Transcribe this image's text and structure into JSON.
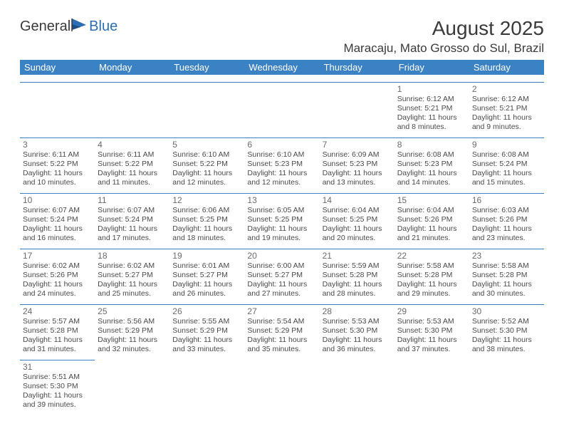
{
  "brand": {
    "part1": "General",
    "part2": "Blue"
  },
  "title": "August 2025",
  "location": "Maracaju, Mato Grosso do Sul, Brazil",
  "colors": {
    "header_bg": "#3b82c4",
    "header_fg": "#ffffff",
    "rule": "#3b82c4",
    "text": "#3a3a3a",
    "muted": "#6b6b6b",
    "brand_blue": "#2a6fb5"
  },
  "weekdays": [
    "Sunday",
    "Monday",
    "Tuesday",
    "Wednesday",
    "Thursday",
    "Friday",
    "Saturday"
  ],
  "cells": [
    [
      {
        "blank": true
      },
      {
        "blank": true
      },
      {
        "blank": true
      },
      {
        "blank": true
      },
      {
        "blank": true
      },
      {
        "num": "1",
        "sunrise": "Sunrise: 6:12 AM",
        "sunset": "Sunset: 5:21 PM",
        "day1": "Daylight: 11 hours",
        "day2": "and 8 minutes."
      },
      {
        "num": "2",
        "sunrise": "Sunrise: 6:12 AM",
        "sunset": "Sunset: 5:21 PM",
        "day1": "Daylight: 11 hours",
        "day2": "and 9 minutes."
      }
    ],
    [
      {
        "num": "3",
        "sunrise": "Sunrise: 6:11 AM",
        "sunset": "Sunset: 5:22 PM",
        "day1": "Daylight: 11 hours",
        "day2": "and 10 minutes."
      },
      {
        "num": "4",
        "sunrise": "Sunrise: 6:11 AM",
        "sunset": "Sunset: 5:22 PM",
        "day1": "Daylight: 11 hours",
        "day2": "and 11 minutes."
      },
      {
        "num": "5",
        "sunrise": "Sunrise: 6:10 AM",
        "sunset": "Sunset: 5:22 PM",
        "day1": "Daylight: 11 hours",
        "day2": "and 12 minutes."
      },
      {
        "num": "6",
        "sunrise": "Sunrise: 6:10 AM",
        "sunset": "Sunset: 5:23 PM",
        "day1": "Daylight: 11 hours",
        "day2": "and 12 minutes."
      },
      {
        "num": "7",
        "sunrise": "Sunrise: 6:09 AM",
        "sunset": "Sunset: 5:23 PM",
        "day1": "Daylight: 11 hours",
        "day2": "and 13 minutes."
      },
      {
        "num": "8",
        "sunrise": "Sunrise: 6:08 AM",
        "sunset": "Sunset: 5:23 PM",
        "day1": "Daylight: 11 hours",
        "day2": "and 14 minutes."
      },
      {
        "num": "9",
        "sunrise": "Sunrise: 6:08 AM",
        "sunset": "Sunset: 5:24 PM",
        "day1": "Daylight: 11 hours",
        "day2": "and 15 minutes."
      }
    ],
    [
      {
        "num": "10",
        "sunrise": "Sunrise: 6:07 AM",
        "sunset": "Sunset: 5:24 PM",
        "day1": "Daylight: 11 hours",
        "day2": "and 16 minutes."
      },
      {
        "num": "11",
        "sunrise": "Sunrise: 6:07 AM",
        "sunset": "Sunset: 5:24 PM",
        "day1": "Daylight: 11 hours",
        "day2": "and 17 minutes."
      },
      {
        "num": "12",
        "sunrise": "Sunrise: 6:06 AM",
        "sunset": "Sunset: 5:25 PM",
        "day1": "Daylight: 11 hours",
        "day2": "and 18 minutes."
      },
      {
        "num": "13",
        "sunrise": "Sunrise: 6:05 AM",
        "sunset": "Sunset: 5:25 PM",
        "day1": "Daylight: 11 hours",
        "day2": "and 19 minutes."
      },
      {
        "num": "14",
        "sunrise": "Sunrise: 6:04 AM",
        "sunset": "Sunset: 5:25 PM",
        "day1": "Daylight: 11 hours",
        "day2": "and 20 minutes."
      },
      {
        "num": "15",
        "sunrise": "Sunrise: 6:04 AM",
        "sunset": "Sunset: 5:26 PM",
        "day1": "Daylight: 11 hours",
        "day2": "and 21 minutes."
      },
      {
        "num": "16",
        "sunrise": "Sunrise: 6:03 AM",
        "sunset": "Sunset: 5:26 PM",
        "day1": "Daylight: 11 hours",
        "day2": "and 23 minutes."
      }
    ],
    [
      {
        "num": "17",
        "sunrise": "Sunrise: 6:02 AM",
        "sunset": "Sunset: 5:26 PM",
        "day1": "Daylight: 11 hours",
        "day2": "and 24 minutes."
      },
      {
        "num": "18",
        "sunrise": "Sunrise: 6:02 AM",
        "sunset": "Sunset: 5:27 PM",
        "day1": "Daylight: 11 hours",
        "day2": "and 25 minutes."
      },
      {
        "num": "19",
        "sunrise": "Sunrise: 6:01 AM",
        "sunset": "Sunset: 5:27 PM",
        "day1": "Daylight: 11 hours",
        "day2": "and 26 minutes."
      },
      {
        "num": "20",
        "sunrise": "Sunrise: 6:00 AM",
        "sunset": "Sunset: 5:27 PM",
        "day1": "Daylight: 11 hours",
        "day2": "and 27 minutes."
      },
      {
        "num": "21",
        "sunrise": "Sunrise: 5:59 AM",
        "sunset": "Sunset: 5:28 PM",
        "day1": "Daylight: 11 hours",
        "day2": "and 28 minutes."
      },
      {
        "num": "22",
        "sunrise": "Sunrise: 5:58 AM",
        "sunset": "Sunset: 5:28 PM",
        "day1": "Daylight: 11 hours",
        "day2": "and 29 minutes."
      },
      {
        "num": "23",
        "sunrise": "Sunrise: 5:58 AM",
        "sunset": "Sunset: 5:28 PM",
        "day1": "Daylight: 11 hours",
        "day2": "and 30 minutes."
      }
    ],
    [
      {
        "num": "24",
        "sunrise": "Sunrise: 5:57 AM",
        "sunset": "Sunset: 5:28 PM",
        "day1": "Daylight: 11 hours",
        "day2": "and 31 minutes."
      },
      {
        "num": "25",
        "sunrise": "Sunrise: 5:56 AM",
        "sunset": "Sunset: 5:29 PM",
        "day1": "Daylight: 11 hours",
        "day2": "and 32 minutes."
      },
      {
        "num": "26",
        "sunrise": "Sunrise: 5:55 AM",
        "sunset": "Sunset: 5:29 PM",
        "day1": "Daylight: 11 hours",
        "day2": "and 33 minutes."
      },
      {
        "num": "27",
        "sunrise": "Sunrise: 5:54 AM",
        "sunset": "Sunset: 5:29 PM",
        "day1": "Daylight: 11 hours",
        "day2": "and 35 minutes."
      },
      {
        "num": "28",
        "sunrise": "Sunrise: 5:53 AM",
        "sunset": "Sunset: 5:30 PM",
        "day1": "Daylight: 11 hours",
        "day2": "and 36 minutes."
      },
      {
        "num": "29",
        "sunrise": "Sunrise: 5:53 AM",
        "sunset": "Sunset: 5:30 PM",
        "day1": "Daylight: 11 hours",
        "day2": "and 37 minutes."
      },
      {
        "num": "30",
        "sunrise": "Sunrise: 5:52 AM",
        "sunset": "Sunset: 5:30 PM",
        "day1": "Daylight: 11 hours",
        "day2": "and 38 minutes."
      }
    ],
    [
      {
        "num": "31",
        "sunrise": "Sunrise: 5:51 AM",
        "sunset": "Sunset: 5:30 PM",
        "day1": "Daylight: 11 hours",
        "day2": "and 39 minutes."
      },
      {
        "blank": true
      },
      {
        "blank": true
      },
      {
        "blank": true
      },
      {
        "blank": true
      },
      {
        "blank": true
      },
      {
        "blank": true
      }
    ]
  ]
}
